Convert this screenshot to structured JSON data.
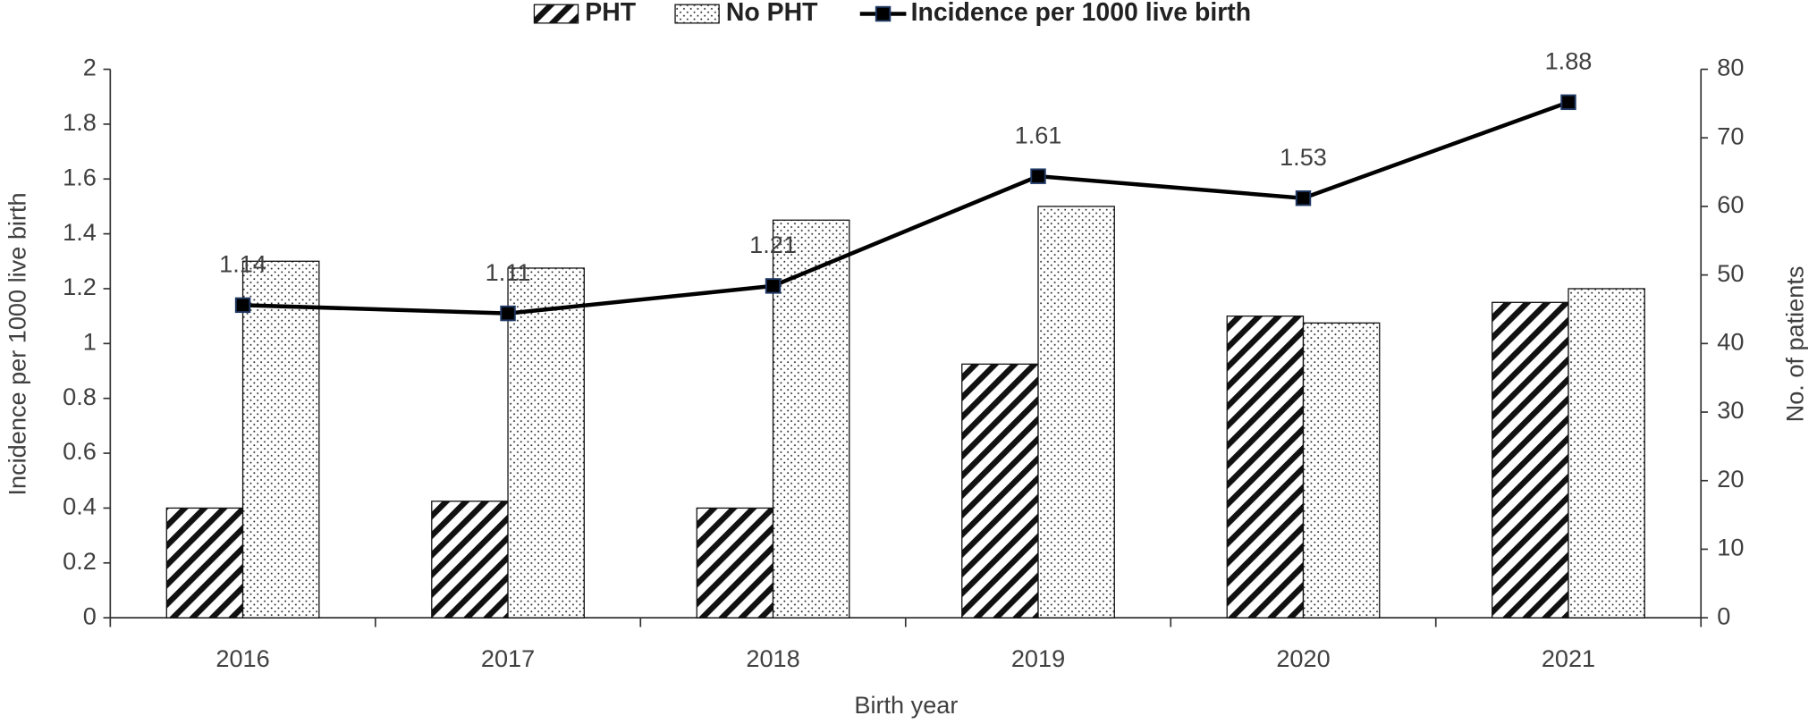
{
  "chart_data": {
    "type": "bar-line",
    "categories": [
      "2016",
      "2017",
      "2018",
      "2019",
      "2020",
      "2021"
    ],
    "series": [
      {
        "name": "PHT",
        "type": "bar",
        "axis": "y2",
        "color": "#000000",
        "pattern": "hatch",
        "values": [
          16,
          17,
          16,
          37,
          44,
          46
        ]
      },
      {
        "name": "No PHT",
        "type": "bar",
        "axis": "y2",
        "color": "#000000",
        "pattern": "dots",
        "values": [
          52,
          51,
          58,
          60,
          43,
          48
        ]
      },
      {
        "name": "Incidence per 1000 live birth",
        "type": "line",
        "axis": "y",
        "color": "#000000",
        "marker_color": "#1f3864",
        "values": [
          1.14,
          1.11,
          1.21,
          1.61,
          1.53,
          1.88
        ]
      }
    ],
    "x_label": "Birth year",
    "y_label": "Incidence per 1000 live birth",
    "y2_label": "No. of patients",
    "ylim": [
      0,
      2
    ],
    "yticks": [
      0,
      0.2,
      0.4,
      0.6,
      0.8,
      1,
      1.2,
      1.4,
      1.6,
      1.8,
      2
    ],
    "y2lim": [
      0,
      80
    ],
    "y2ticks": [
      0,
      10,
      20,
      30,
      40,
      50,
      60,
      70,
      80
    ],
    "legend": "top",
    "grid": false
  }
}
